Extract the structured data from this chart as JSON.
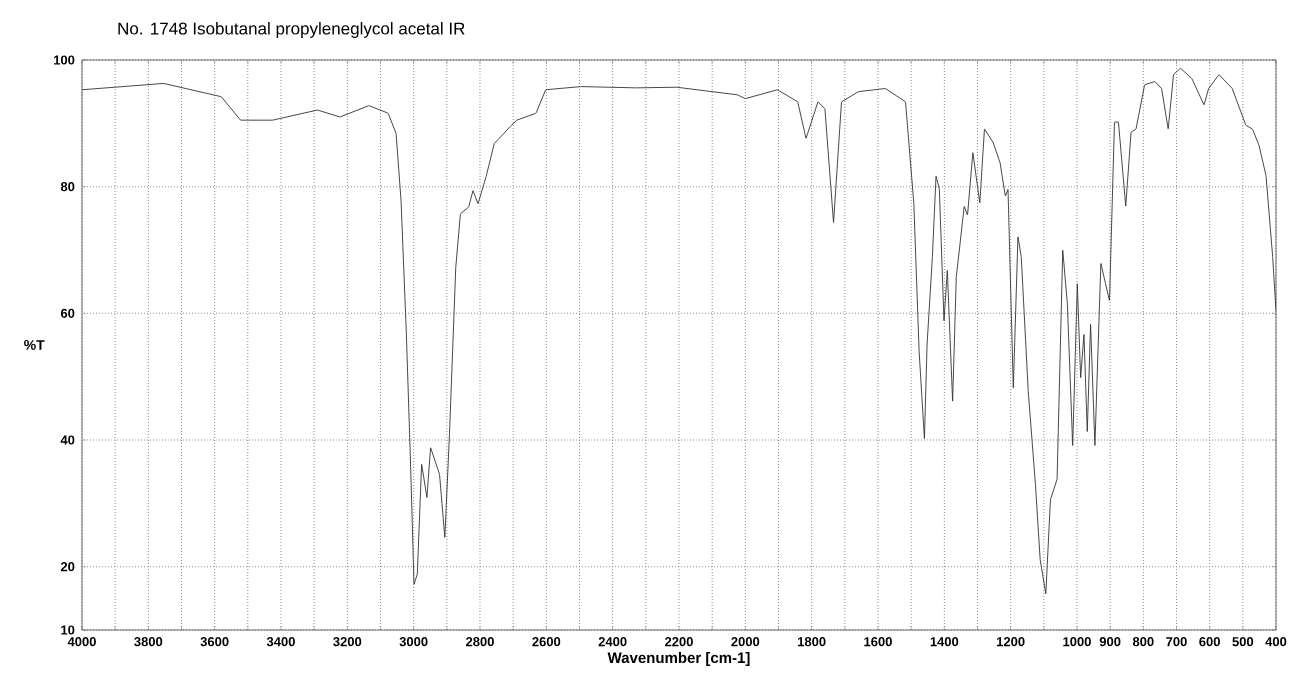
{
  "chart_data": {
    "type": "line",
    "title": "No. 1748 Isobutanal propyleneglycol acetal IR",
    "xlabel": "Wavenumber [cm-1]",
    "ylabel": "%T",
    "xlim": [
      4000,
      400
    ],
    "ylim": [
      10,
      100
    ],
    "xticks": [
      4000,
      {
        "value": 3900,
        "label": null
      },
      3800,
      {
        "value": 3700,
        "label": null
      },
      3600,
      {
        "value": 3500,
        "label": null
      },
      3400,
      {
        "value": 3300,
        "label": null
      },
      3200,
      {
        "value": 3100,
        "label": null
      },
      3000,
      {
        "value": 2900,
        "label": null
      },
      2800,
      {
        "value": 2700,
        "label": null
      },
      2600,
      {
        "value": 2500,
        "label": null
      },
      2400,
      {
        "value": 2300,
        "label": null
      },
      2200,
      {
        "value": 2100,
        "label": null
      },
      2000,
      {
        "value": 1900,
        "label": null
      },
      1800,
      {
        "value": 1700,
        "label": null
      },
      1600,
      {
        "value": 1500,
        "label": null
      },
      1400,
      {
        "value": 1300,
        "label": null
      },
      1200,
      {
        "value": 1100,
        "label": null
      },
      1000,
      900,
      800,
      700,
      600,
      500,
      400
    ],
    "yticks": [
      10,
      20,
      40,
      60,
      80,
      100
    ],
    "grid": true,
    "series": [
      {
        "color": "#333333",
        "x": [
          4000,
          3754,
          3580,
          3522,
          3425,
          3290,
          3222,
          3135,
          3077,
          3053,
          3038,
          3022,
          3009,
          2999,
          2989,
          2976,
          2960,
          2949,
          2922,
          2906,
          2892,
          2873,
          2859,
          2834,
          2821,
          2806,
          2782,
          2757,
          2728,
          2709,
          2689,
          2631,
          2602,
          2496,
          2329,
          2207,
          2024,
          2000,
          1903,
          1842,
          1817,
          1781,
          1760,
          1734,
          1710,
          1659,
          1578,
          1517,
          1492,
          1476,
          1460,
          1452,
          1436,
          1425,
          1415,
          1401,
          1391,
          1375,
          1364,
          1340,
          1330,
          1314,
          1293,
          1279,
          1253,
          1232,
          1216,
          1208,
          1192,
          1178,
          1168,
          1147,
          1125,
          1111,
          1094,
          1080,
          1060,
          1043,
          1029,
          1013,
          999,
          989,
          979,
          969,
          959,
          946,
          928,
          914,
          902,
          887,
          875,
          853,
          837,
          822,
          796,
          765,
          745,
          725,
          709,
          688,
          654,
          617,
          603,
          572,
          532,
          491,
          471,
          451,
          430,
          410,
          400
        ],
        "values": [
          95.3,
          96.3,
          94.2,
          90.5,
          90.5,
          92.1,
          91.0,
          92.8,
          91.6,
          88.4,
          77.8,
          56.8,
          35.7,
          17.2,
          18.8,
          36.2,
          30.9,
          38.8,
          34.6,
          24.6,
          40.9,
          67.3,
          75.7,
          76.8,
          79.4,
          77.3,
          81.5,
          86.8,
          88.4,
          89.5,
          90.5,
          91.6,
          95.3,
          95.8,
          95.6,
          95.7,
          94.5,
          93.9,
          95.3,
          93.4,
          87.6,
          93.4,
          92.3,
          74.3,
          93.4,
          95.0,
          95.5,
          93.4,
          77.4,
          54.0,
          40.2,
          55.1,
          68.9,
          81.7,
          79.6,
          58.8,
          66.8,
          46.1,
          65.7,
          76.9,
          75.5,
          85.4,
          77.4,
          89.1,
          87.0,
          83.8,
          78.5,
          79.6,
          48.2,
          72.1,
          68.9,
          47.7,
          32.8,
          21.1,
          15.7,
          30.6,
          33.8,
          70.0,
          61.5,
          39.1,
          64.7,
          49.8,
          56.7,
          41.3,
          58.3,
          39.1,
          67.9,
          64.7,
          62.0,
          90.2,
          90.2,
          76.9,
          88.6,
          89.1,
          96.1,
          96.6,
          95.5,
          89.1,
          97.7,
          98.7,
          97.1,
          92.9,
          95.5,
          97.7,
          95.5,
          89.7,
          89.1,
          86.5,
          81.7,
          68.9,
          60.4
        ]
      }
    ]
  }
}
